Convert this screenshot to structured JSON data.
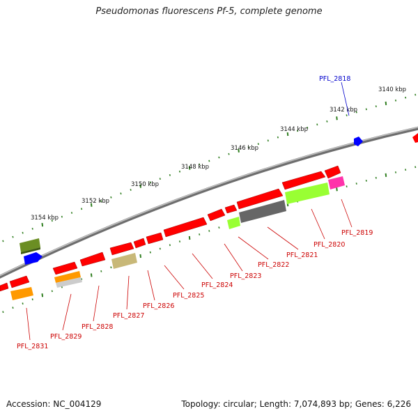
{
  "title": "Pseudomonas fluorescens Pf-5, complete genome",
  "accession": "Accession: NC_004129",
  "summary": "Topology: circular; Length: 7,074,893 bp; Genes: 6,226",
  "colors": {
    "backbone": "#8a8a8a",
    "tick": "#2e7d1e",
    "cds": "#ff0000",
    "highlight_label": "#0000cc",
    "gene_label": "#cc0000",
    "dark_green": "#6b8e23",
    "blue": "#0000ff",
    "orange": "#ff9900",
    "khaki": "#c8b878",
    "dark_gray": "#666666",
    "lime": "#99ff33",
    "magenta": "#ff33aa",
    "light_gray": "#cccccc"
  },
  "position_labels": [
    "3140 kbp",
    "3142 kbp",
    "3144 kbp",
    "3146 kbp",
    "3148 kbp",
    "3150 kbp",
    "3152 kbp",
    "3154 kbp"
  ],
  "highlight_gene": "PFL_2818",
  "gene_labels": [
    "PFL_2819",
    "PFL_2820",
    "PFL_2821",
    "PFL_2822",
    "PFL_2823",
    "PFL_2824",
    "PFL_2825",
    "PFL_2826",
    "PFL_2827",
    "PFL_2828",
    "PFL_2829",
    "PFL_2831"
  ]
}
